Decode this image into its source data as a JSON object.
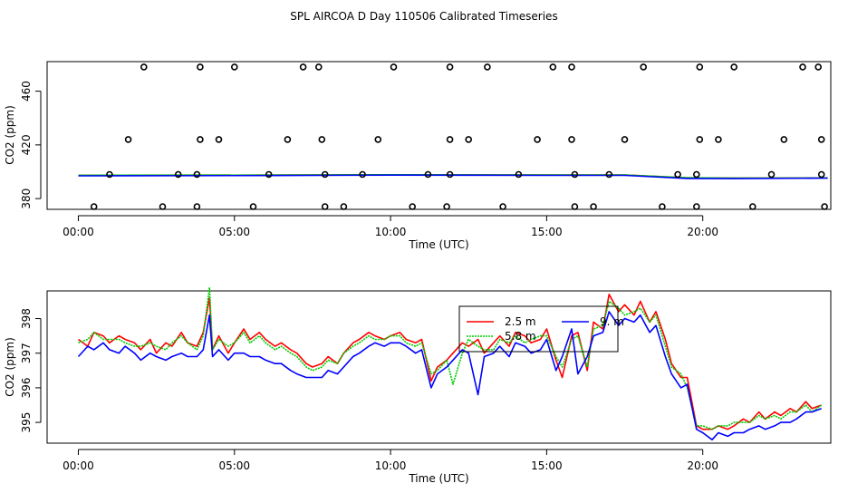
{
  "title": "SPL AIRCOA D  Day 110506  Calibrated Timeseries",
  "colors": {
    "s1": "#ff0000",
    "s2": "#00cc00",
    "s3": "#0000ff",
    "axis": "#000000"
  },
  "chart_data": [
    {
      "type": "scatter",
      "xlabel": "Time (UTC)",
      "ylabel": "CO2 (ppm)",
      "xlim": [
        -1,
        24.1
      ],
      "ylim": [
        372,
        482
      ],
      "xticks": [
        0,
        5,
        10,
        15,
        20
      ],
      "xtick_labels": [
        "00:00",
        "05:00",
        "10:00",
        "15:00",
        "20:00"
      ],
      "yticks": [
        380,
        420,
        460
      ],
      "ytick_labels": [
        "380",
        "420",
        "460"
      ],
      "points_x": [
        2.1,
        3.9,
        5.0,
        7.2,
        7.7,
        10.1,
        11.9,
        13.1,
        15.2,
        15.8,
        18.1,
        19.9,
        21.0,
        23.2,
        23.7,
        1.6,
        3.9,
        4.5,
        6.7,
        7.8,
        9.6,
        11.9,
        12.5,
        14.7,
        15.8,
        17.5,
        19.9,
        20.5,
        22.6,
        23.8,
        1.0,
        3.2,
        3.8,
        6.1,
        7.9,
        9.1,
        11.2,
        11.9,
        14.1,
        15.9,
        17.0,
        19.2,
        19.8,
        22.2,
        23.8,
        0.5,
        2.7,
        3.8,
        5.6,
        7.9,
        8.5,
        10.7,
        11.8,
        13.6,
        15.9,
        16.5,
        18.7,
        19.8,
        21.6,
        23.9
      ],
      "points_y": [
        478,
        478,
        478,
        478,
        478,
        478,
        478,
        478,
        478,
        478,
        478,
        478,
        478,
        478,
        478,
        424,
        424,
        424,
        424,
        424,
        424,
        424,
        424,
        424,
        424,
        424,
        424,
        424,
        424,
        424,
        398,
        398,
        398,
        398,
        398,
        398,
        398,
        398,
        398,
        398,
        398,
        398,
        398,
        398,
        398,
        374,
        374,
        374,
        374,
        374,
        374,
        374,
        374,
        374,
        374,
        374,
        374,
        374,
        374,
        374
      ],
      "series": [
        {
          "x": [
            0,
            6,
            10,
            15,
            17.5,
            19.5,
            21,
            24
          ],
          "values": [
            397.4,
            397.5,
            397.8,
            397.6,
            397.6,
            395.5,
            395.2,
            395.4
          ],
          "color": "#ff0000"
        },
        {
          "x": [
            0,
            6,
            10,
            15,
            17.5,
            19.5,
            21,
            24
          ],
          "values": [
            397.4,
            397.5,
            397.8,
            397.6,
            397.6,
            395.5,
            395.2,
            395.4
          ],
          "color": "#00cc00"
        },
        {
          "x": [
            0,
            6,
            10,
            15,
            17.5,
            19.5,
            21,
            24
          ],
          "values": [
            397.0,
            397.2,
            397.5,
            397.3,
            397.3,
            395.0,
            394.9,
            395.3
          ],
          "color": "#0000ff"
        }
      ]
    },
    {
      "type": "line",
      "xlabel": "Time (UTC)",
      "ylabel": "CO2 (ppm)",
      "xlim": [
        -1,
        24.1
      ],
      "ylim": [
        394.4,
        398.8
      ],
      "xticks": [
        0,
        5,
        10,
        15,
        20
      ],
      "xtick_labels": [
        "00:00",
        "05:00",
        "10:00",
        "15:00",
        "20:00"
      ],
      "yticks": [
        395,
        396,
        397,
        398
      ],
      "ytick_labels": [
        "395",
        "396",
        "397",
        "398"
      ],
      "legend": {
        "position": "top-center"
      },
      "legend_entries": [
        {
          "name": "2.5 m",
          "color": "#ff0000",
          "style": "solid"
        },
        {
          "name": "5.8 m",
          "color": "#00cc00",
          "style": "dotted"
        },
        {
          "name": "9. m",
          "color": "#0000ff",
          "style": "solid"
        }
      ],
      "series": [
        {
          "name": "2.5 m",
          "color": "#ff0000",
          "x": [
            0,
            0.3,
            0.5,
            0.8,
            1.0,
            1.3,
            1.5,
            1.8,
            2.0,
            2.3,
            2.5,
            2.8,
            3.0,
            3.3,
            3.5,
            3.8,
            4.0,
            4.2,
            4.3,
            4.5,
            4.8,
            5.0,
            5.3,
            5.5,
            5.8,
            6.0,
            6.3,
            6.5,
            6.8,
            7.0,
            7.3,
            7.5,
            7.8,
            8.0,
            8.3,
            8.5,
            8.8,
            9.0,
            9.3,
            9.5,
            9.8,
            10.0,
            10.3,
            10.5,
            10.8,
            11.0,
            11.3,
            11.5,
            11.8,
            12.0,
            12.3,
            12.5,
            12.8,
            13.0,
            13.3,
            13.5,
            13.8,
            14.0,
            14.3,
            14.5,
            14.8,
            15.0,
            15.3,
            15.5,
            15.8,
            16.0,
            16.3,
            16.5,
            16.8,
            17.0,
            17.3,
            17.5,
            17.8,
            18.0,
            18.3,
            18.5,
            18.8,
            19.0,
            19.3,
            19.5,
            19.8,
            20.0,
            20.3,
            20.5,
            20.8,
            21.0,
            21.3,
            21.5,
            21.8,
            22.0,
            22.3,
            22.5,
            22.8,
            23.0,
            23.3,
            23.5,
            23.8
          ],
          "values": [
            397.4,
            397.2,
            397.6,
            397.5,
            397.3,
            397.5,
            397.4,
            397.3,
            397.1,
            397.4,
            397.0,
            397.3,
            397.2,
            397.6,
            397.3,
            397.2,
            397.6,
            398.6,
            397.1,
            397.5,
            397.0,
            397.3,
            397.7,
            397.4,
            397.6,
            397.4,
            397.2,
            397.3,
            397.1,
            397.0,
            396.7,
            396.6,
            396.7,
            396.9,
            396.7,
            397.0,
            397.3,
            397.4,
            397.6,
            397.5,
            397.4,
            397.5,
            397.6,
            397.4,
            397.3,
            397.4,
            396.2,
            396.6,
            396.8,
            397.0,
            397.3,
            397.2,
            397.4,
            397.0,
            397.3,
            397.5,
            397.2,
            397.6,
            397.5,
            397.3,
            397.4,
            397.7,
            396.8,
            396.3,
            397.5,
            397.6,
            396.5,
            397.9,
            397.7,
            398.7,
            398.2,
            398.4,
            398.1,
            398.5,
            397.9,
            398.2,
            397.4,
            396.7,
            396.3,
            396.3,
            394.9,
            394.8,
            394.8,
            394.9,
            394.8,
            394.9,
            395.1,
            395.0,
            395.3,
            395.1,
            395.3,
            395.2,
            395.4,
            395.3,
            395.6,
            395.4,
            395.5
          ]
        },
        {
          "name": "5.8 m",
          "color": "#00cc00",
          "x": [
            0,
            0.3,
            0.5,
            0.8,
            1.0,
            1.3,
            1.5,
            1.8,
            2.0,
            2.3,
            2.5,
            2.8,
            3.0,
            3.3,
            3.5,
            3.8,
            4.0,
            4.2,
            4.3,
            4.5,
            4.8,
            5.0,
            5.3,
            5.5,
            5.8,
            6.0,
            6.3,
            6.5,
            6.8,
            7.0,
            7.3,
            7.5,
            7.8,
            8.0,
            8.3,
            8.5,
            8.8,
            9.0,
            9.3,
            9.5,
            9.8,
            10.0,
            10.3,
            10.5,
            10.8,
            11.0,
            11.3,
            11.5,
            11.8,
            12.0,
            12.3,
            12.5,
            12.8,
            13.0,
            13.3,
            13.5,
            13.8,
            14.0,
            14.3,
            14.5,
            14.8,
            15.0,
            15.3,
            15.5,
            15.8,
            16.0,
            16.3,
            16.5,
            16.8,
            17.0,
            17.3,
            17.5,
            17.8,
            18.0,
            18.3,
            18.5,
            18.8,
            19.0,
            19.3,
            19.5,
            19.8,
            20.0,
            20.3,
            20.5,
            20.8,
            21.0,
            21.3,
            21.5,
            21.8,
            22.0,
            22.3,
            22.5,
            22.8,
            23.0,
            23.3,
            23.5,
            23.8
          ],
          "values": [
            397.3,
            397.4,
            397.6,
            397.4,
            397.4,
            397.4,
            397.3,
            397.2,
            397.2,
            397.3,
            397.2,
            397.1,
            397.3,
            397.5,
            397.3,
            397.1,
            397.5,
            398.9,
            397.1,
            397.4,
            397.2,
            397.3,
            397.6,
            397.3,
            397.5,
            397.3,
            397.1,
            397.2,
            397.0,
            396.9,
            396.6,
            396.5,
            396.6,
            396.8,
            396.7,
            397.0,
            397.2,
            397.3,
            397.5,
            397.4,
            397.4,
            397.5,
            397.5,
            397.3,
            397.2,
            397.3,
            396.4,
            396.5,
            396.8,
            396.1,
            397.0,
            397.4,
            397.2,
            397.1,
            397.1,
            397.4,
            397.3,
            397.5,
            397.3,
            397.4,
            397.5,
            397.5,
            396.9,
            396.6,
            397.4,
            397.5,
            396.6,
            397.7,
            397.8,
            398.5,
            398.3,
            398.1,
            398.2,
            398.3,
            397.9,
            398.1,
            397.2,
            396.6,
            396.4,
            396.0,
            394.9,
            394.9,
            394.8,
            394.9,
            394.9,
            395.0,
            395.0,
            395.0,
            395.2,
            395.1,
            395.2,
            395.1,
            395.3,
            395.3,
            395.5,
            395.3,
            395.5
          ]
        },
        {
          "name": "9. m",
          "color": "#0000ff",
          "x": [
            0,
            0.3,
            0.5,
            0.8,
            1.0,
            1.3,
            1.5,
            1.8,
            2.0,
            2.3,
            2.5,
            2.8,
            3.0,
            3.3,
            3.5,
            3.8,
            4.0,
            4.2,
            4.3,
            4.5,
            4.8,
            5.0,
            5.3,
            5.5,
            5.8,
            6.0,
            6.3,
            6.5,
            6.8,
            7.0,
            7.3,
            7.5,
            7.8,
            8.0,
            8.3,
            8.5,
            8.8,
            9.0,
            9.3,
            9.5,
            9.8,
            10.0,
            10.3,
            10.5,
            10.8,
            11.0,
            11.3,
            11.5,
            11.8,
            12.0,
            12.3,
            12.5,
            12.8,
            13.0,
            13.3,
            13.5,
            13.8,
            14.0,
            14.3,
            14.5,
            14.8,
            15.0,
            15.3,
            15.5,
            15.8,
            16.0,
            16.3,
            16.5,
            16.8,
            17.0,
            17.3,
            17.5,
            17.8,
            18.0,
            18.3,
            18.5,
            18.8,
            19.0,
            19.3,
            19.5,
            19.8,
            20.0,
            20.3,
            20.5,
            20.8,
            21.0,
            21.3,
            21.5,
            21.8,
            22.0,
            22.3,
            22.5,
            22.8,
            23.0,
            23.3,
            23.5,
            23.8
          ],
          "values": [
            396.9,
            397.2,
            397.1,
            397.3,
            397.1,
            397.0,
            397.2,
            397.0,
            396.8,
            397.0,
            396.9,
            396.8,
            396.9,
            397.0,
            396.9,
            396.9,
            397.1,
            398.1,
            396.9,
            397.1,
            396.8,
            397.0,
            397.0,
            396.9,
            396.9,
            396.8,
            396.7,
            396.7,
            396.5,
            396.4,
            396.3,
            396.3,
            396.3,
            396.5,
            396.4,
            396.6,
            396.9,
            397.0,
            397.2,
            397.3,
            397.2,
            397.3,
            397.3,
            397.2,
            397.0,
            397.1,
            396.0,
            396.4,
            396.6,
            396.8,
            397.1,
            397.0,
            395.8,
            396.9,
            397.0,
            397.2,
            396.9,
            397.3,
            397.2,
            397.0,
            397.1,
            397.4,
            396.5,
            396.9,
            397.7,
            396.4,
            396.9,
            397.5,
            397.6,
            398.2,
            397.8,
            398.0,
            397.9,
            398.1,
            397.6,
            397.8,
            396.9,
            396.4,
            396.0,
            396.1,
            394.8,
            394.7,
            394.5,
            394.7,
            394.6,
            394.7,
            394.7,
            394.8,
            394.9,
            394.8,
            394.9,
            395.0,
            395.0,
            395.1,
            395.3,
            395.3,
            395.4
          ]
        }
      ]
    }
  ]
}
